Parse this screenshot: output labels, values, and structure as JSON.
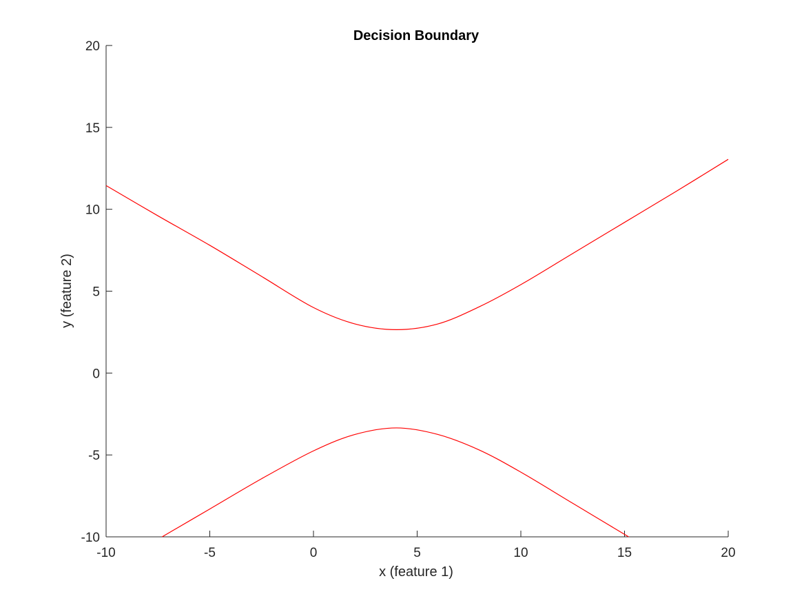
{
  "chart_data": {
    "type": "line",
    "title": "Decision Boundary",
    "xlabel": "x (feature 1)",
    "ylabel": "y (feature 2)",
    "xlim": [
      -10,
      20
    ],
    "ylim": [
      -10,
      20
    ],
    "xticks": [
      -10,
      -5,
      0,
      5,
      10,
      15,
      20
    ],
    "yticks": [
      -10,
      -5,
      0,
      5,
      10,
      15,
      20
    ],
    "xtick_labels": [
      "-10",
      "-5",
      "0",
      "5",
      "10",
      "15",
      "20"
    ],
    "ytick_labels": [
      "-10",
      "-5",
      "0",
      "5",
      "10",
      "15",
      "20"
    ],
    "grid": false,
    "legend": "none",
    "axes_box": "left-bottom",
    "series": [
      {
        "color": "#ff0000",
        "x": [
          -10,
          -7.5,
          -5,
          -2.5,
          0,
          2,
          4,
          6,
          8,
          10,
          12.5,
          15,
          17.5,
          20
        ],
        "y": [
          11.45,
          9.6,
          7.8,
          5.9,
          4.0,
          3.0,
          2.65,
          3.0,
          4.05,
          5.4,
          7.3,
          9.2,
          11.1,
          13.05
        ]
      },
      {
        "color": "#ff0000",
        "x": [
          -7.3,
          -5,
          -2.5,
          0,
          2,
          4,
          6,
          8,
          10,
          12.5,
          15.2
        ],
        "y": [
          -10.0,
          -8.3,
          -6.45,
          -4.75,
          -3.75,
          -3.35,
          -3.75,
          -4.7,
          -6.05,
          -7.95,
          -10.0
        ]
      }
    ]
  }
}
